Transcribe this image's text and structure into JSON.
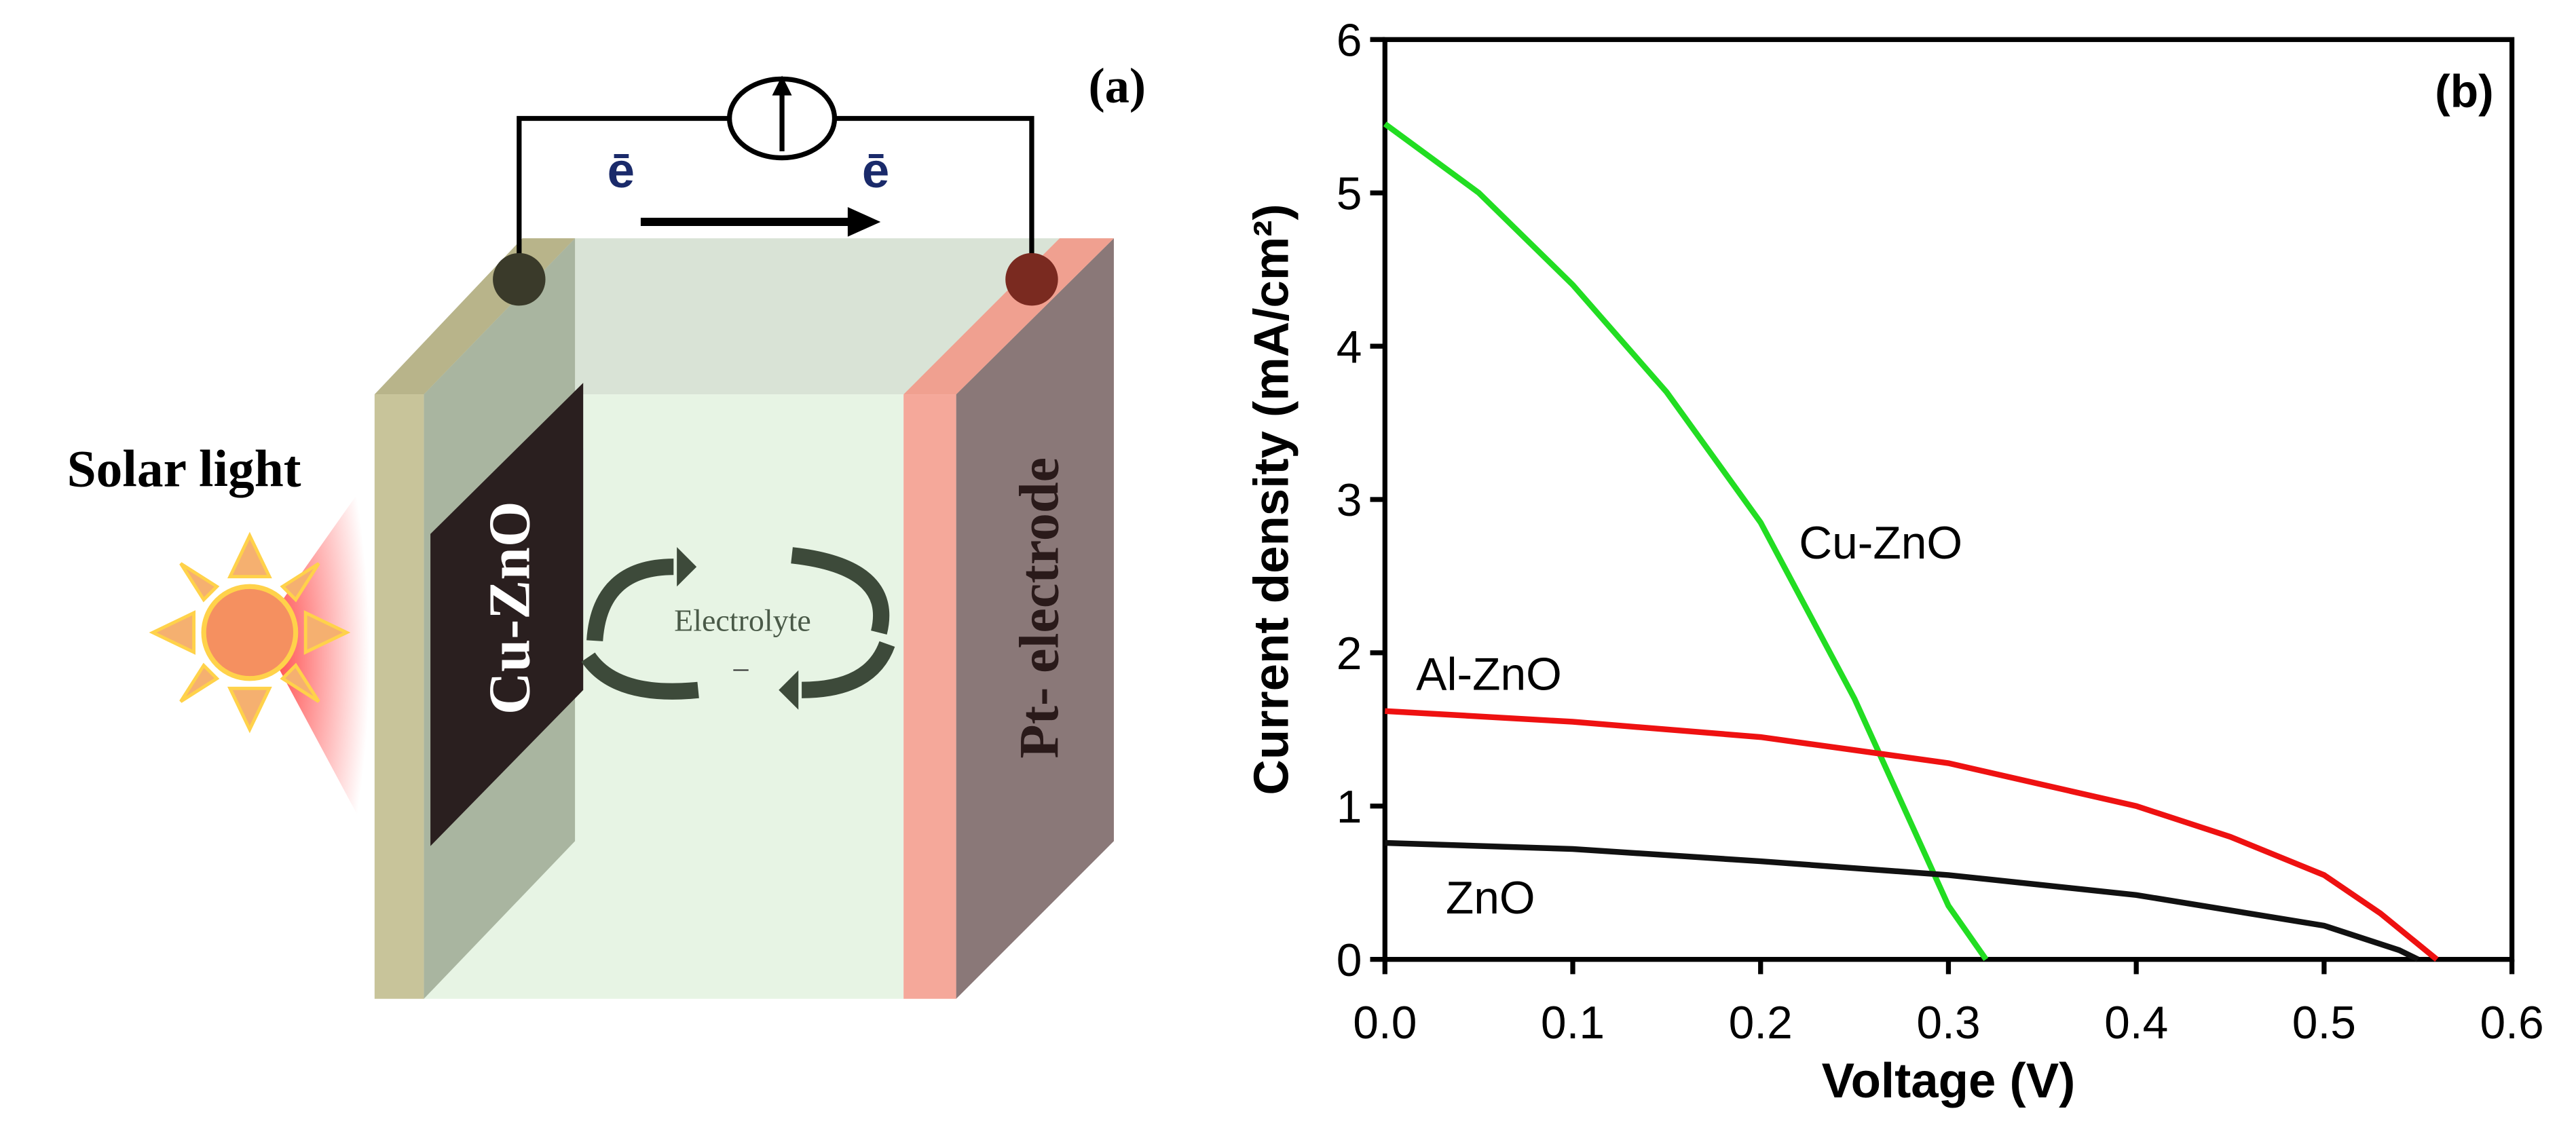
{
  "diagram": {
    "panel_label": "(a)",
    "light_label": "Solar light",
    "photoanode_label": "Cu-ZnO",
    "electrolyte_label": "Electrolyte",
    "electrolyte_sign": "–",
    "counter_electrode_label": "Pt- electrode",
    "electron_labels": [
      "ē",
      "ē"
    ]
  },
  "chart_data": {
    "type": "line",
    "panel_label": "(b)",
    "x_label": "Voltage (V)",
    "y_label": "Current density (mA/cm²)",
    "xlim": [
      0,
      0.6
    ],
    "ylim": [
      0,
      6
    ],
    "xticks": [
      {
        "value": 0,
        "label": "0.0"
      },
      0.1,
      0.2,
      0.3,
      0.4,
      0.5,
      0.6
    ],
    "yticks": [
      0,
      1,
      2,
      3,
      4,
      5,
      6
    ],
    "series": [
      {
        "name": "Cu-ZnO",
        "color": "#22dd22",
        "x": [
          0,
          0.05,
          0.1,
          0.15,
          0.2,
          0.25,
          0.3,
          0.32
        ],
        "values": [
          5.45,
          5.0,
          4.4,
          3.7,
          2.85,
          1.7,
          0.35,
          0
        ]
      },
      {
        "name": "Al-ZnO",
        "color": "#ee1111",
        "x": [
          0,
          0.1,
          0.2,
          0.3,
          0.4,
          0.45,
          0.5,
          0.53,
          0.55,
          0.56
        ],
        "values": [
          1.62,
          1.55,
          1.45,
          1.28,
          1.0,
          0.8,
          0.55,
          0.3,
          0.1,
          0
        ]
      },
      {
        "name": "ZnO",
        "color": "#111111",
        "x": [
          0,
          0.1,
          0.2,
          0.3,
          0.4,
          0.5,
          0.54,
          0.55
        ],
        "values": [
          0.76,
          0.72,
          0.64,
          0.55,
          0.42,
          0.22,
          0.06,
          0
        ]
      }
    ]
  }
}
